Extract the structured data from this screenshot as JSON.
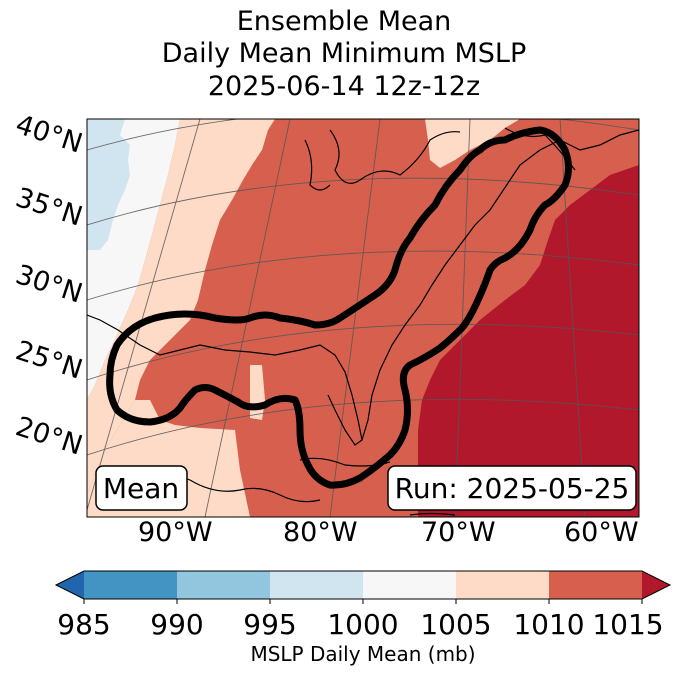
{
  "title": {
    "line1": "Ensemble Mean",
    "line2": "Daily Mean Minimum MSLP",
    "line3": "2025-06-14 12z-12z"
  },
  "map": {
    "lat_labels": [
      "40°N",
      "35°N",
      "30°N",
      "25°N",
      "20°N"
    ],
    "lon_labels": [
      "90°W",
      "80°W",
      "70°W",
      "60°W"
    ],
    "left_box": "Mean",
    "right_box": "Run: 2025-05-25",
    "contour_color": "#000000"
  },
  "colorbar": {
    "ticks": [
      "985",
      "990",
      "995",
      "1000",
      "1005",
      "1010",
      "1015"
    ],
    "label": "MSLP Daily Mean (mb)",
    "colors": {
      "under": "#2166ac",
      "b985": "#4393c3",
      "b990": "#92c5de",
      "b995": "#d1e5f0",
      "b1000": "#f7f7f7",
      "b1005": "#fddbc7",
      "b1010": "#d6604d",
      "over": "#b2182b"
    }
  }
}
